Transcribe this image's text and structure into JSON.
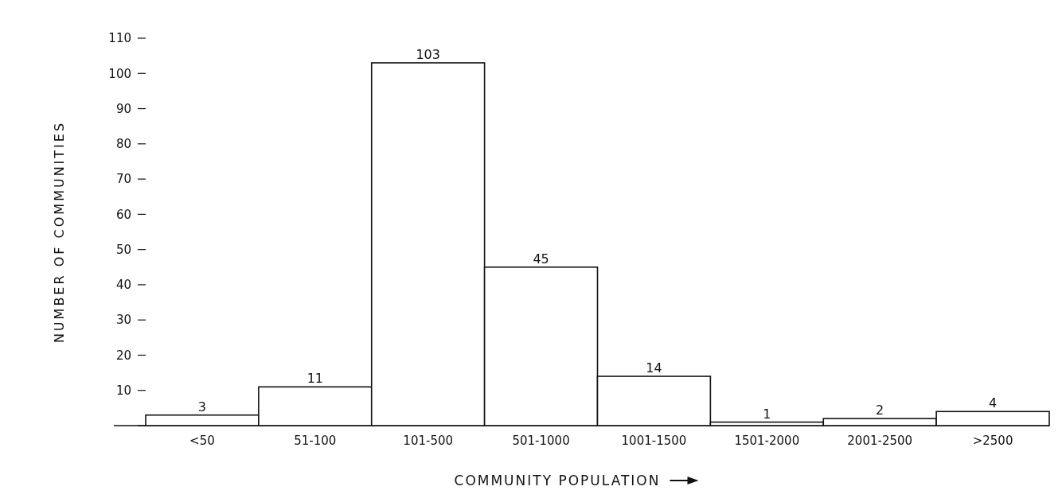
{
  "chart_data": {
    "type": "bar",
    "xlabel": "COMMUNITY POPULATION",
    "ylabel": "NUMBER OF COMMUNITIES",
    "categories": [
      "<50",
      "51-100",
      "101-500",
      "501-1000",
      "1001-1500",
      "1501-2000",
      "2001-2500",
      ">2500"
    ],
    "values": [
      3,
      11,
      103,
      45,
      14,
      1,
      2,
      4
    ],
    "color": "#ffffff",
    "data_labels": true,
    "ylim": [
      0,
      110
    ],
    "yticks": [
      {
        "value": 0,
        "label": null
      },
      10,
      20,
      30,
      40,
      50,
      60,
      70,
      80,
      90,
      100,
      110
    ],
    "grid": false
  }
}
